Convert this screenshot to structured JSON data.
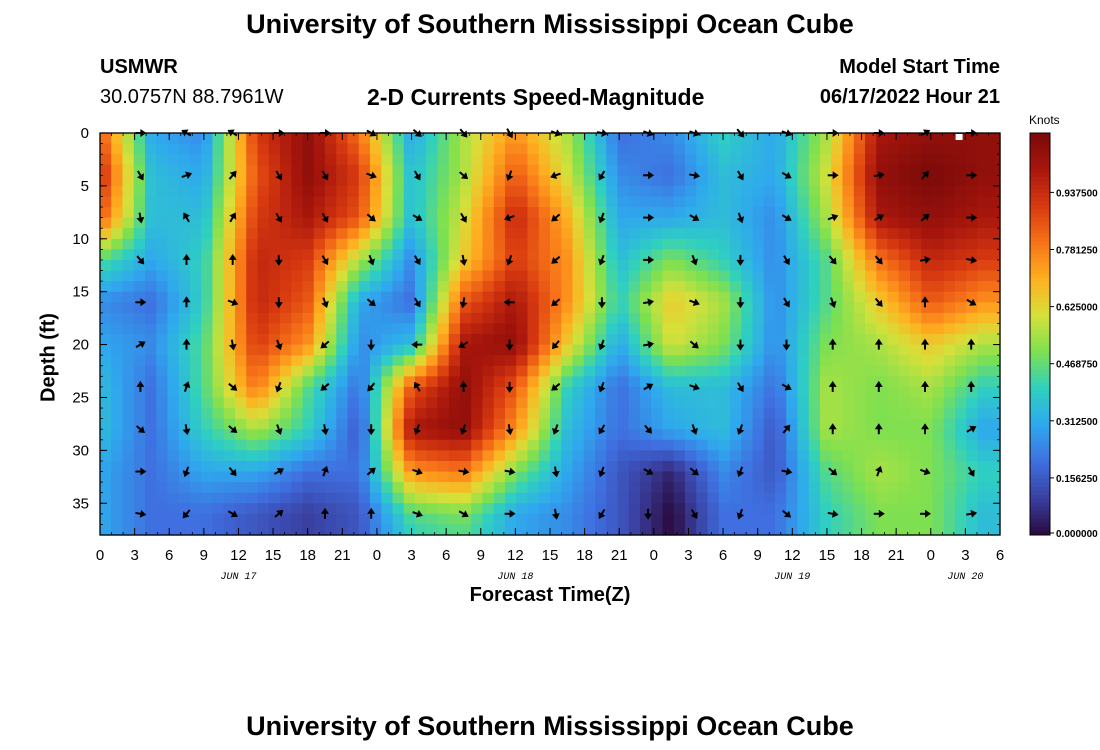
{
  "header": {
    "title": "University of Southern Mississippi Ocean Cube",
    "station_name": "USMWR",
    "station_coords": "30.0757N  88.7961W",
    "subtitle": "2-D Currents Speed-Magnitude",
    "model_start_label": "Model Start Time",
    "model_start_value": "06/17/2022 Hour 21"
  },
  "footer": {
    "title": "University of Southern Mississippi Ocean Cube"
  },
  "chart_data": {
    "type": "heatmap",
    "title": "2-D Currents Speed-Magnitude",
    "xlabel": "Forecast Time(Z)",
    "ylabel": "Depth (ft)",
    "colorbar_label": "Knots",
    "colorbar_ticks": [
      "0.000000",
      "0.156250",
      "0.312500",
      "0.468750",
      "0.625000",
      "0.781250",
      "0.937500"
    ],
    "colorbar_tick_values": [
      0,
      0.15625,
      0.3125,
      0.46875,
      0.625,
      0.78125,
      0.9375
    ],
    "colorbar_range": [
      0,
      1.1
    ],
    "xlim": [
      0,
      78
    ],
    "ylim": [
      38,
      0
    ],
    "x_tick_values": [
      0,
      3,
      6,
      9,
      12,
      15,
      18,
      21,
      24,
      27,
      30,
      33,
      36,
      39,
      42,
      45,
      48,
      51,
      54,
      57,
      60,
      63,
      66,
      69,
      72,
      75,
      78
    ],
    "x_tick_labels": [
      "0",
      "3",
      "6",
      "9",
      "12",
      "15",
      "18",
      "21",
      "0",
      "3",
      "6",
      "9",
      "12",
      "15",
      "18",
      "21",
      "0",
      "3",
      "6",
      "9",
      "12",
      "15",
      "18",
      "21",
      "0",
      "3",
      "6"
    ],
    "date_labels": [
      {
        "x": 12,
        "text": "JUN 17"
      },
      {
        "x": 36,
        "text": "JUN 18"
      },
      {
        "x": 60,
        "text": "JUN 19"
      },
      {
        "x": 75,
        "text": "JUN 20"
      }
    ],
    "y_tick_values": [
      0,
      5,
      10,
      15,
      20,
      25,
      30,
      35
    ],
    "y_tick_labels": [
      "0",
      "5",
      "10",
      "15",
      "20",
      "25",
      "30",
      "35"
    ],
    "grid": false,
    "colormap": [
      "#2a0a3d",
      "#3a3fa0",
      "#3f6fe0",
      "#2fa8ee",
      "#2fd0c0",
      "#7ee050",
      "#d6e03a",
      "#ffb020",
      "#f77318",
      "#d83a10",
      "#a8160c",
      "#7a0a0a"
    ],
    "times": [
      0,
      4.5,
      9,
      13.5,
      18,
      22.5,
      27,
      31.5,
      36,
      40.5,
      45,
      49.5,
      54,
      58.5,
      63,
      67.5,
      72,
      76.5
    ],
    "depths": [
      0,
      4,
      8,
      12,
      16,
      20,
      24,
      28,
      32,
      36,
      38
    ],
    "speed_knots": [
      [
        0.85,
        0.3,
        0.25,
        0.9,
        1.05,
        0.8,
        0.3,
        0.55,
        0.75,
        0.55,
        0.2,
        0.25,
        0.4,
        0.3,
        0.55,
        1.0,
        1.05,
        1.05
      ],
      [
        0.95,
        0.35,
        0.3,
        0.85,
        1.05,
        0.9,
        0.35,
        0.55,
        0.85,
        0.6,
        0.25,
        0.2,
        0.35,
        0.3,
        0.6,
        1.05,
        1.1,
        1.05
      ],
      [
        0.85,
        0.35,
        0.35,
        0.9,
        1.0,
        0.85,
        0.35,
        0.6,
        0.95,
        0.7,
        0.3,
        0.3,
        0.35,
        0.25,
        0.55,
        1.0,
        1.05,
        1.0
      ],
      [
        0.45,
        0.3,
        0.4,
        0.95,
        0.9,
        0.55,
        0.25,
        0.65,
        0.9,
        0.75,
        0.35,
        0.5,
        0.4,
        0.25,
        0.45,
        0.8,
        0.95,
        0.9
      ],
      [
        0.25,
        0.2,
        0.4,
        0.95,
        0.85,
        0.3,
        0.2,
        0.85,
        1.0,
        0.75,
        0.4,
        0.65,
        0.55,
        0.25,
        0.45,
        0.65,
        0.85,
        0.75
      ],
      [
        0.3,
        0.25,
        0.45,
        0.9,
        0.75,
        0.25,
        0.35,
        1.0,
        1.05,
        0.65,
        0.3,
        0.6,
        0.5,
        0.25,
        0.5,
        0.55,
        0.65,
        0.55
      ],
      [
        0.35,
        0.2,
        0.45,
        0.8,
        0.45,
        0.2,
        0.85,
        1.05,
        0.85,
        0.4,
        0.2,
        0.35,
        0.35,
        0.2,
        0.55,
        0.5,
        0.55,
        0.4
      ],
      [
        0.35,
        0.2,
        0.4,
        0.55,
        0.4,
        0.15,
        1.0,
        1.05,
        0.75,
        0.35,
        0.2,
        0.3,
        0.35,
        0.15,
        0.55,
        0.5,
        0.5,
        0.3
      ],
      [
        0.3,
        0.2,
        0.3,
        0.3,
        0.2,
        0.2,
        0.75,
        0.8,
        0.5,
        0.3,
        0.15,
        0.05,
        0.25,
        0.15,
        0.45,
        0.55,
        0.5,
        0.4
      ],
      [
        0.3,
        0.2,
        0.2,
        0.15,
        0.1,
        0.15,
        0.45,
        0.5,
        0.3,
        0.25,
        0.15,
        0.0,
        0.2,
        0.2,
        0.4,
        0.5,
        0.5,
        0.35
      ],
      [
        0.3,
        0.2,
        0.2,
        0.15,
        0.1,
        0.15,
        0.4,
        0.45,
        0.3,
        0.25,
        0.15,
        0.0,
        0.2,
        0.2,
        0.4,
        0.5,
        0.5,
        0.35
      ]
    ],
    "vector_times": [
      3.5,
      7.5,
      11.5,
      15.5,
      19.5,
      23.5,
      27.5,
      31.5,
      35.5,
      39.5,
      43.5,
      47.5,
      51.5,
      55.5,
      59.5,
      63.5,
      67.5,
      71.5,
      75.5
    ],
    "vector_depths": [
      0,
      4,
      8,
      12,
      16,
      20,
      24,
      28,
      32,
      36
    ],
    "vector_directions_deg": [
      [
        90,
        300,
        300,
        90,
        90,
        120,
        130,
        140,
        150,
        110,
        100,
        110,
        110,
        140,
        110,
        90,
        90,
        60,
        90
      ],
      [
        150,
        70,
        40,
        150,
        150,
        110,
        150,
        130,
        200,
        250,
        210,
        90,
        100,
        150,
        120,
        90,
        80,
        40,
        90
      ],
      [
        170,
        330,
        30,
        150,
        150,
        130,
        120,
        150,
        250,
        230,
        200,
        90,
        120,
        160,
        120,
        70,
        60,
        50,
        90
      ],
      [
        140,
        0,
        0,
        180,
        150,
        160,
        150,
        170,
        200,
        230,
        200,
        90,
        160,
        180,
        150,
        140,
        140,
        80,
        100
      ],
      [
        90,
        0,
        110,
        180,
        160,
        130,
        150,
        190,
        270,
        230,
        180,
        80,
        110,
        180,
        150,
        160,
        140,
        0,
        120
      ],
      [
        60,
        0,
        170,
        160,
        230,
        180,
        270,
        240,
        180,
        220,
        200,
        80,
        130,
        180,
        180,
        0,
        0,
        0,
        0
      ],
      [
        0,
        20,
        130,
        200,
        230,
        220,
        330,
        0,
        180,
        230,
        200,
        60,
        110,
        150,
        120,
        0,
        0,
        0,
        0
      ],
      [
        130,
        170,
        130,
        160,
        170,
        180,
        200,
        200,
        170,
        200,
        210,
        140,
        160,
        200,
        40,
        0,
        0,
        0,
        60
      ],
      [
        90,
        200,
        140,
        60,
        20,
        50,
        110,
        100,
        100,
        170,
        200,
        120,
        130,
        200,
        100,
        130,
        20,
        110,
        150
      ],
      [
        100,
        220,
        120,
        50,
        0,
        0,
        110,
        120,
        90,
        170,
        210,
        180,
        150,
        200,
        130,
        100,
        90,
        90,
        80
      ]
    ],
    "model_start_marker_x": 74.5
  }
}
